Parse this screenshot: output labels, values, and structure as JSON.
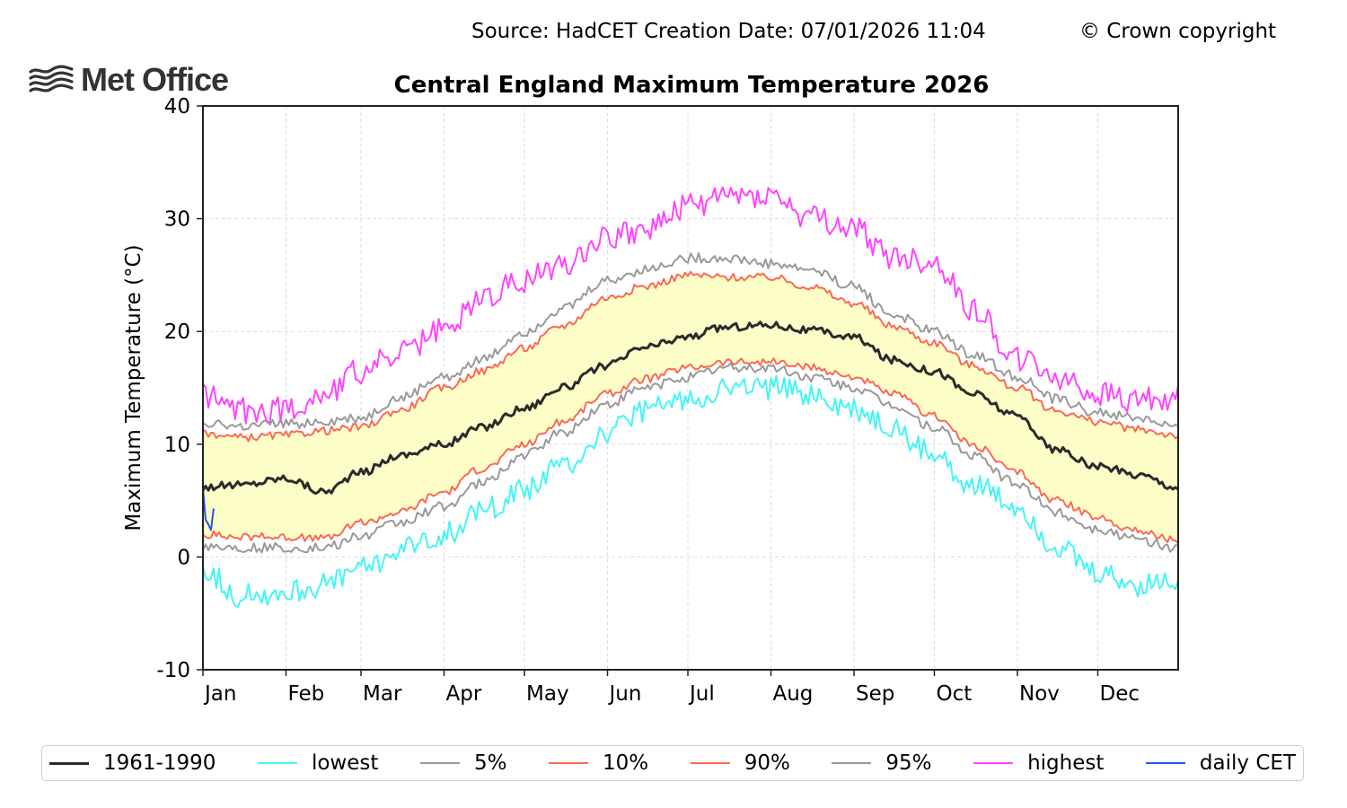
{
  "header": {
    "source_text": "Source: HadCET  Creation Date: 07/01/2026 11:04",
    "copyright_text": "© Crown copyright",
    "logo_text": "Met Office",
    "logo_icon": "waves-icon"
  },
  "chart_data": {
    "type": "line",
    "title": "Central England Maximum Temperature 2026",
    "xlabel": "",
    "ylabel": "Maximum Temperature (°C)",
    "ylim": [
      -10,
      40
    ],
    "yticks": [
      -10,
      0,
      10,
      20,
      30,
      40
    ],
    "xlim_days": [
      1,
      365
    ],
    "xticks": [
      {
        "label": "Jan",
        "day": 1
      },
      {
        "label": "Feb",
        "day": 32
      },
      {
        "label": "Mar",
        "day": 60
      },
      {
        "label": "Apr",
        "day": 91
      },
      {
        "label": "May",
        "day": 121
      },
      {
        "label": "Jun",
        "day": 152
      },
      {
        "label": "Jul",
        "day": 182
      },
      {
        "label": "Aug",
        "day": 213
      },
      {
        "label": "Sep",
        "day": 244
      },
      {
        "label": "Oct",
        "day": 274
      },
      {
        "label": "Nov",
        "day": 305
      },
      {
        "label": "Dec",
        "day": 335
      }
    ],
    "grid": true,
    "legend_position": "bottom",
    "shaded_band": {
      "between": [
        "10%",
        "90%"
      ],
      "color": "#fdfdc8"
    },
    "anchor_days": [
      1,
      15,
      32,
      46,
      60,
      74,
      91,
      105,
      121,
      135,
      152,
      166,
      182,
      196,
      213,
      227,
      244,
      258,
      274,
      288,
      305,
      319,
      335,
      350,
      365
    ],
    "series": [
      {
        "name": "1961-1990",
        "color": "#2b2b2b",
        "width": 3,
        "values": [
          6.2,
          6.4,
          7.0,
          5.8,
          7.5,
          9.0,
          10.0,
          11.5,
          13.2,
          15.0,
          17.0,
          18.6,
          19.5,
          20.4,
          20.6,
          20.1,
          19.5,
          17.5,
          16.5,
          14.5,
          12.5,
          9.5,
          8.0,
          7.3,
          6.2
        ]
      },
      {
        "name": "lowest",
        "color": "#44f5f5",
        "width": 2,
        "values": [
          -1.0,
          -3.5,
          -3.0,
          -2.5,
          -1.0,
          0.5,
          2.0,
          4.0,
          6.0,
          8.0,
          11.0,
          13.0,
          14.0,
          15.0,
          15.0,
          14.5,
          13.0,
          11.5,
          9.0,
          6.5,
          4.5,
          1.0,
          -1.5,
          -2.5,
          -2.0
        ]
      },
      {
        "name": "5%",
        "color": "#999999",
        "width": 2,
        "values": [
          1.0,
          0.8,
          0.8,
          0.8,
          1.8,
          3.0,
          4.5,
          6.5,
          9.0,
          11.0,
          13.5,
          15.0,
          16.0,
          16.8,
          16.8,
          16.0,
          15.0,
          13.5,
          11.5,
          9.0,
          6.5,
          4.0,
          2.5,
          1.5,
          0.8
        ]
      },
      {
        "name": "10%",
        "color": "#fa6a52",
        "width": 2,
        "values": [
          2.0,
          1.8,
          1.8,
          1.6,
          3.0,
          4.0,
          5.8,
          7.8,
          10.0,
          12.0,
          14.5,
          15.8,
          16.8,
          17.3,
          17.3,
          16.8,
          16.0,
          14.5,
          12.5,
          10.0,
          7.5,
          5.0,
          3.5,
          2.3,
          1.5
        ]
      },
      {
        "name": "90%",
        "color": "#fa6a52",
        "width": 2,
        "values": [
          11.0,
          10.6,
          10.8,
          11.2,
          11.5,
          13.0,
          15.0,
          16.5,
          18.5,
          20.5,
          23.0,
          24.0,
          25.0,
          24.8,
          24.8,
          24.0,
          22.5,
          20.5,
          19.0,
          17.0,
          15.0,
          13.0,
          12.0,
          11.3,
          10.8
        ]
      },
      {
        "name": "95%",
        "color": "#999999",
        "width": 2,
        "values": [
          12.0,
          11.5,
          11.8,
          12.0,
          12.3,
          14.0,
          16.0,
          17.5,
          20.0,
          22.0,
          24.5,
          25.5,
          26.5,
          26.5,
          26.0,
          25.5,
          24.0,
          21.5,
          20.0,
          18.0,
          16.0,
          14.0,
          12.8,
          12.3,
          11.5
        ]
      },
      {
        "name": "highest",
        "color": "#ff44ff",
        "width": 2,
        "values": [
          14.5,
          13.0,
          13.0,
          14.5,
          16.5,
          18.0,
          20.0,
          23.0,
          24.5,
          26.0,
          28.5,
          29.0,
          31.0,
          32.0,
          32.0,
          30.0,
          29.0,
          26.5,
          26.0,
          22.0,
          17.5,
          16.0,
          14.3,
          14.0,
          14.2
        ]
      },
      {
        "name": "daily CET",
        "color": "#2255ee",
        "width": 2,
        "days": [
          1,
          2,
          3,
          4,
          5
        ],
        "values": [
          6.1,
          3.3,
          2.9,
          2.4,
          4.3
        ]
      }
    ]
  }
}
